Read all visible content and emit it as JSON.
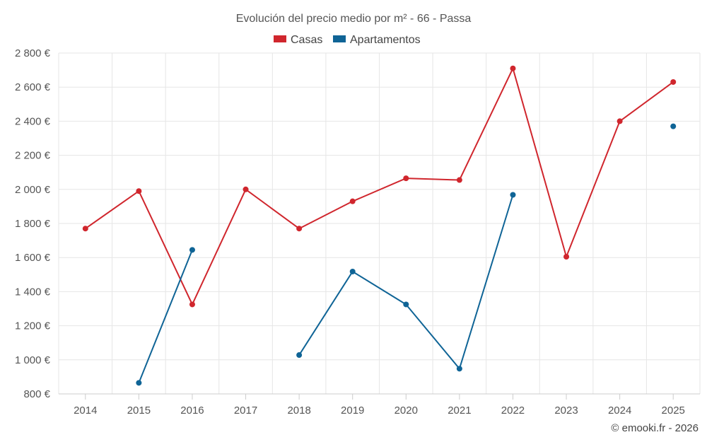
{
  "chart_data": {
    "type": "line",
    "title": "Evolución del precio medio por m² - 66 - Passa",
    "categories": [
      "2014",
      "2015",
      "2016",
      "2017",
      "2018",
      "2019",
      "2020",
      "2021",
      "2022",
      "2023",
      "2024",
      "2025"
    ],
    "ylim": [
      800,
      2800
    ],
    "yticks": [
      800,
      1000,
      1200,
      1400,
      1600,
      1800,
      2000,
      2200,
      2400,
      2600,
      2800
    ],
    "ytick_labels": [
      "800 €",
      "1 000 €",
      "1 200 €",
      "1 400 €",
      "1 600 €",
      "1 800 €",
      "2 000 €",
      "2 200 €",
      "2 400 €",
      "2 600 €",
      "2 800 €"
    ],
    "legend_position": "top-center",
    "grid": true,
    "series": [
      {
        "name": "Casas",
        "color": "#d0262d",
        "values": [
          1770,
          1990,
          1325,
          2000,
          1770,
          1930,
          2065,
          2055,
          2710,
          1605,
          2400,
          2630
        ]
      },
      {
        "name": "Apartamentos",
        "color": "#0f6496",
        "values": [
          null,
          865,
          1645,
          null,
          1028,
          1518,
          1325,
          948,
          1968,
          null,
          null,
          2370
        ]
      }
    ]
  },
  "credit": "© emooki.fr - 2026"
}
